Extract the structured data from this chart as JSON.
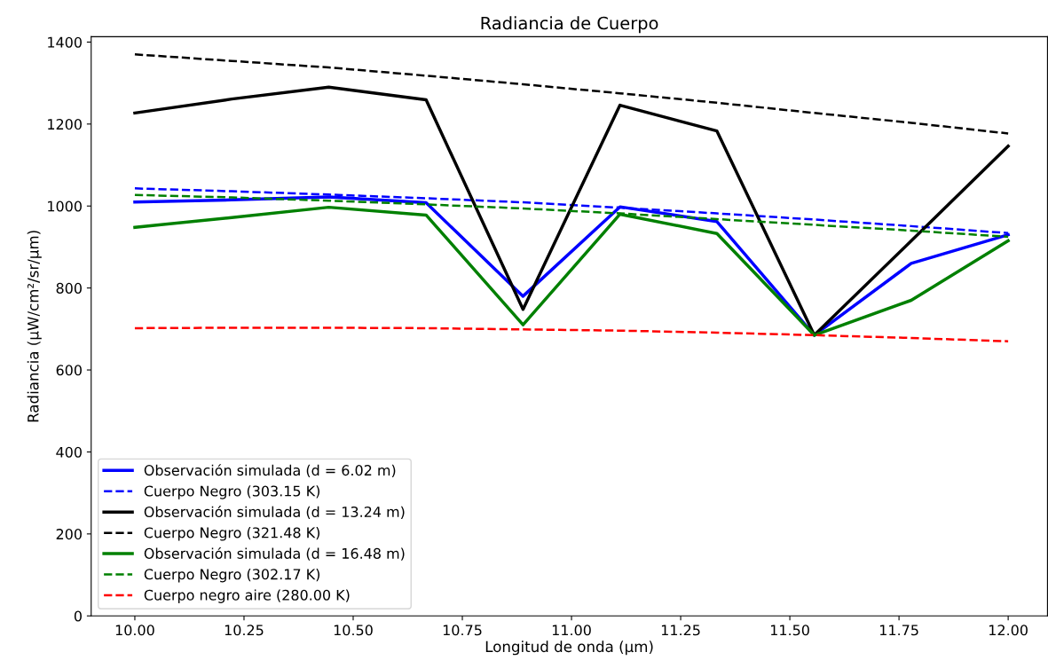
{
  "chart_data": {
    "type": "line",
    "title": "Radiancia de Cuerpo",
    "xlabel": "Longitud de onda (µm)",
    "ylabel": "Radiancia (µW/cm²/sr/µm)",
    "x": [
      10.0,
      10.222,
      10.444,
      10.667,
      10.889,
      11.111,
      11.333,
      11.556,
      11.778,
      12.0
    ],
    "xlim": [
      9.9,
      12.09
    ],
    "ylim": [
      0,
      1413
    ],
    "xticks": [
      {
        "value": 10.0,
        "label": "10.00"
      },
      {
        "value": 10.25,
        "label": "10.25"
      },
      {
        "value": 10.5,
        "label": "10.50"
      },
      {
        "value": 10.75,
        "label": "10.75"
      },
      {
        "value": 11.0,
        "label": "11.00"
      },
      {
        "value": 11.25,
        "label": "11.25"
      },
      {
        "value": 11.5,
        "label": "11.50"
      },
      {
        "value": 11.75,
        "label": "11.75"
      },
      {
        "value": 12.0,
        "label": "12.00"
      }
    ],
    "yticks": [
      0,
      200,
      400,
      600,
      800,
      1000,
      1200,
      1400
    ],
    "grid": false,
    "legend": "bottom left",
    "marker": "none",
    "series": [
      {
        "name": "Observación simulada (d = 6.02 m)",
        "color": "#0000ff",
        "line_style": "solid",
        "values": [
          1010,
          1015,
          1022,
          1008,
          780,
          998,
          962,
          685,
          860,
          930
        ]
      },
      {
        "name": "Cuerpo Negro (303.15 K)",
        "color": "#0000ff",
        "line_style": "dashed",
        "values": [
          1043,
          1036,
          1028,
          1019,
          1009,
          996,
          982,
          967,
          951,
          934
        ]
      },
      {
        "name": "Observación simulada (d = 13.24 m)",
        "color": "#000000",
        "line_style": "solid",
        "values": [
          1227,
          1261,
          1290,
          1259,
          748,
          1246,
          1183,
          685,
          915,
          1146
        ]
      },
      {
        "name": "Cuerpo Negro (321.48 K)",
        "color": "#000000",
        "line_style": "dashed",
        "values": [
          1370,
          1354,
          1338,
          1318,
          1297,
          1275,
          1252,
          1227,
          1203,
          1177
        ]
      },
      {
        "name": "Observación simulada (d = 16.48 m)",
        "color": "#008000",
        "line_style": "solid",
        "values": [
          948,
          972,
          997,
          978,
          710,
          980,
          933,
          685,
          770,
          915
        ]
      },
      {
        "name": "Cuerpo Negro (302.17 K)",
        "color": "#008000",
        "line_style": "dashed",
        "values": [
          1027,
          1021,
          1013,
          1004,
          994,
          982,
          968,
          954,
          940,
          925
        ]
      },
      {
        "name": "Cuerpo negro aire (280.00 K)",
        "color": "#ff0000",
        "line_style": "dashed",
        "values": [
          702,
          703,
          703,
          702,
          699,
          696,
          691,
          685,
          678,
          670
        ]
      }
    ]
  }
}
